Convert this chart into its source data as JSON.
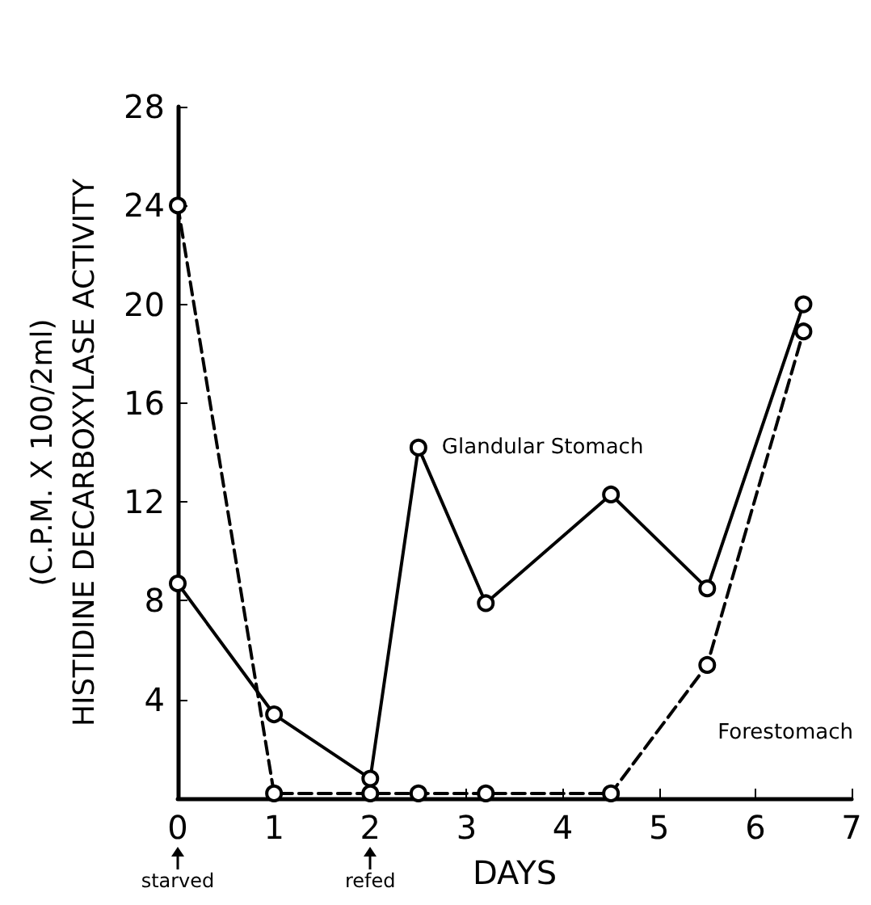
{
  "chart_data": {
    "type": "line",
    "xlabel": "DAYS",
    "ylabel": "(C.P.M. X 100/2ml)\nHISTIDINE DECARBOXYLASE ACTIVITY",
    "xlim": [
      0,
      7
    ],
    "xticks": [
      0,
      1,
      2,
      3,
      4,
      5,
      6,
      7
    ],
    "ylim": [
      0,
      28
    ],
    "yticks": [
      4,
      8,
      12,
      16,
      20,
      24,
      28
    ],
    "grid": false,
    "legend": false,
    "marker": "circle",
    "series": [
      {
        "name": "Glandular Stomach",
        "color": "#000000",
        "line_style": "solid",
        "x": [
          0,
          1,
          2,
          2.5,
          3.2,
          4.5,
          5.5,
          6.5
        ],
        "values": [
          8.7,
          3.4,
          0.8,
          14.2,
          7.9,
          12.3,
          8.5,
          20
        ]
      },
      {
        "name": "Forestomach",
        "color": "#000000",
        "line_style": "dashed",
        "x": [
          0,
          1,
          2,
          2.5,
          3.2,
          4.5,
          5.5,
          6.5
        ],
        "values": [
          24,
          0.2,
          0.2,
          0.2,
          0.2,
          0.2,
          5.4,
          18.9
        ]
      }
    ],
    "annotations": [
      "starved",
      "refed"
    ]
  }
}
